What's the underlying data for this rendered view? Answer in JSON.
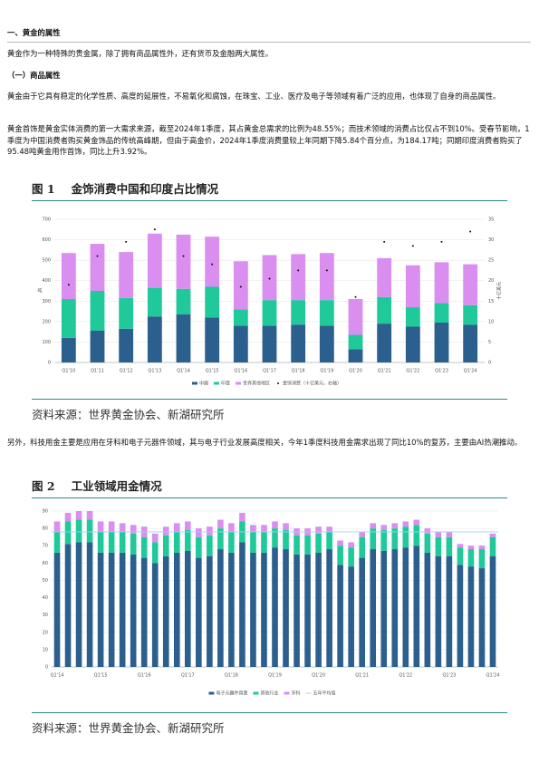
{
  "heading": "一、黄金的属性",
  "intro": "黄金作为一种特殊的贵金属，除了拥有商品属性外，还有货币及金融两大属性。",
  "subheading": "（一）商品属性",
  "paragraphs": [
    "黄金由于它具有稳定的化学性质、高度的延展性，不易氧化和腐蚀，在珠宝、工业、医疗及电子等领域有着广泛的应用，也体现了自身的商品属性。",
    "黄金首饰是黄金实体消费的第一大需求来源，截至2024年1季度，其占黄金总需求的比例为48.55%；而技术领域的消费占比仅占不到10%。受春节影响，1季度为中国消费者购买黄金饰品的传统高峰期，但由于高金价，2024年1季度消费量较上年同期下降5.84个百分点，为184.17吨；同期印度消费者购买了95.48吨黄金用作首饰，同比上升3.92%。",
    "另外，科技用金主要是应用在牙科和电子元器件领域，其与电子行业发展高度相关，今年1季度科技用金需求出现了同比10%的复苏，主要由AI热潮推动。"
  ],
  "figures": [
    {
      "label": "图 1",
      "title": "金饰消费中国和印度占比情况",
      "source": "资料来源：世界黄金协会、新湖研究所"
    },
    {
      "label": "图 2",
      "title": "工业领域用金情况",
      "source": "资料来源：世界黄金协会、新湖研究所"
    }
  ],
  "chart_data": [
    {
      "type": "bar",
      "stacked": true,
      "grid": true,
      "categories": [
        "Q1'10",
        "Q1'11",
        "Q1'12",
        "Q1'13",
        "Q1'14",
        "Q1'15",
        "Q1'16",
        "Q1'17",
        "Q1'18",
        "Q1'19",
        "Q1'20",
        "Q1'21",
        "Q1'22",
        "Q1'23",
        "Q1'24"
      ],
      "ylabel": "吨",
      "y2label": "十亿美元",
      "ylim": [
        0,
        700
      ],
      "yticks": [
        0,
        100,
        200,
        300,
        400,
        500,
        600,
        700
      ],
      "y2lim": [
        0,
        35
      ],
      "y2ticks": [
        0,
        5,
        10,
        15,
        20,
        25,
        30,
        35
      ],
      "series": [
        {
          "name": "中国",
          "type": "bar",
          "color": "#2b5f8e",
          "values": [
            120,
            155,
            165,
            225,
            235,
            220,
            180,
            180,
            185,
            180,
            65,
            190,
            175,
            195,
            185
          ]
        },
        {
          "name": "印度",
          "type": "bar",
          "color": "#1fc99a",
          "values": [
            190,
            195,
            150,
            140,
            125,
            150,
            80,
            125,
            120,
            125,
            70,
            130,
            95,
            95,
            95
          ]
        },
        {
          "name": "世界其他地区",
          "type": "bar",
          "color": "#d98ef0",
          "values": [
            225,
            230,
            225,
            265,
            265,
            245,
            235,
            220,
            225,
            230,
            175,
            190,
            205,
            200,
            200
          ]
        },
        {
          "name": "金饰消费（十亿美元，右轴）",
          "type": "dot",
          "axis": "y2",
          "color": "#111",
          "values": [
            19,
            26,
            29.5,
            32.5,
            26,
            24,
            18.5,
            20.5,
            22.5,
            22.5,
            16,
            29.5,
            28.5,
            29.5,
            32
          ]
        }
      ]
    },
    {
      "type": "bar",
      "stacked": true,
      "grid": true,
      "categories": [
        "Q1'14",
        null,
        null,
        null,
        "Q1'15",
        null,
        null,
        null,
        "Q1'16",
        null,
        null,
        null,
        "Q1'17",
        null,
        null,
        null,
        "Q1'18",
        null,
        null,
        null,
        "Q1'19",
        null,
        null,
        null,
        "Q1'20",
        null,
        null,
        null,
        "Q1'21",
        null,
        null,
        null,
        "Q1'22",
        null,
        null,
        null,
        "Q1'23",
        null,
        null,
        null,
        "Q1'24"
      ],
      "ylim": [
        0,
        90
      ],
      "yticks": [
        0,
        10,
        20,
        30,
        40,
        50,
        60,
        70,
        80,
        90
      ],
      "series": [
        {
          "name": "电子元器件用量",
          "type": "bar",
          "color": "#2b5f8e",
          "values": [
            66,
            71,
            72,
            72,
            66,
            66,
            66,
            65,
            63,
            60,
            64,
            66,
            67,
            63,
            64,
            68,
            66,
            72,
            66,
            66,
            69,
            68,
            65,
            65,
            66,
            68,
            59,
            58,
            63,
            68,
            67,
            68,
            69,
            70,
            66,
            64,
            64,
            59,
            58,
            57,
            64
          ]
        },
        {
          "name": "其他行业",
          "type": "bar",
          "color": "#1fc99a",
          "values": [
            12,
            13,
            13,
            13,
            12,
            12,
            12,
            12,
            12,
            12,
            12,
            12,
            12,
            12,
            12,
            12,
            12,
            12,
            12,
            12,
            11,
            11,
            11,
            11,
            11,
            10,
            11,
            11,
            12,
            12,
            12,
            12,
            12,
            12,
            11,
            11,
            11,
            10,
            10,
            11,
            11
          ]
        },
        {
          "name": "牙科",
          "type": "bar",
          "color": "#d98ef0",
          "values": [
            6,
            5,
            5,
            5,
            6,
            6,
            5,
            5,
            6,
            5,
            5,
            5,
            5,
            5,
            5,
            5,
            5,
            5,
            4,
            4,
            4,
            4,
            4,
            4,
            4,
            3,
            3,
            3,
            3,
            3,
            3,
            3,
            3,
            3,
            3,
            3,
            3,
            2,
            2,
            2,
            2
          ]
        }
      ],
      "reference": {
        "name": "五年平均值",
        "color": "#9fd4ee",
        "value": 78
      }
    }
  ]
}
